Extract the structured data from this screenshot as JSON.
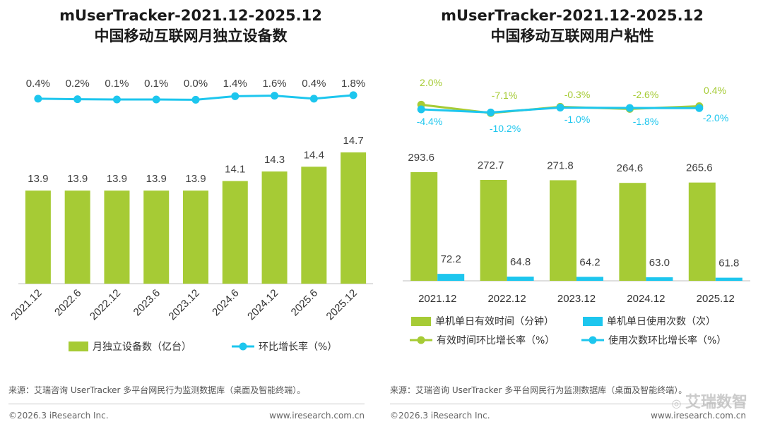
{
  "left": {
    "title_line1": "mUserTracker-2021.12-2025.12",
    "title_line2": "中国移动互联网月独立设备数",
    "source": "来源：艾瑞咨询 UserTracker 多平台网民行为监测数据库（桌面及智能终端）。",
    "copyright": "©2026.3 iResearch Inc.",
    "site": "www.iresearch.com.cn"
  },
  "right": {
    "title_line1": "mUserTracker-2021.12-2025.12",
    "title_line2": "中国移动互联网用户粘性",
    "source": "来源：艾瑞咨询 UserTracker 多平台网民行为监测数据库（桌面及智能终端）。",
    "copyright": "©2026.3 iResearch Inc.",
    "site": "www.iresearch.com.cn",
    "watermark": "艾瑞数智"
  },
  "colors": {
    "green": "#a6cb35",
    "blue": "#1dc6ee",
    "line_green": "#a6cb35",
    "line_blue": "#1dc6ee"
  },
  "chart_data": [
    {
      "type": "bar",
      "categories": [
        "2021.12",
        "2022.6",
        "2022.12",
        "2023.6",
        "2023.12",
        "2024.6",
        "2024.12",
        "2025.6",
        "2025.12"
      ],
      "series": [
        {
          "name": "月独立设备数（亿台）",
          "type": "bar",
          "values": [
            13.9,
            13.9,
            13.9,
            13.9,
            13.9,
            14.1,
            14.3,
            14.4,
            14.7
          ],
          "labels": [
            "13.9",
            "13.9",
            "13.9",
            "13.9",
            "13.9",
            "14.1",
            "14.3",
            "14.4",
            "14.7"
          ]
        },
        {
          "name": "环比增长率（%）",
          "type": "line",
          "values": [
            0.4,
            0.2,
            0.1,
            0.1,
            0.0,
            1.4,
            1.6,
            0.4,
            1.8
          ],
          "labels": [
            "0.4%",
            "0.2%",
            "0.1%",
            "0.1%",
            "0.0%",
            "1.4%",
            "1.6%",
            "0.4%",
            "1.8%"
          ]
        }
      ],
      "legend_position": "bottom",
      "grid": false
    },
    {
      "type": "bar",
      "categories": [
        "2021.12",
        "2022.12",
        "2023.12",
        "2024.12",
        "2025.12"
      ],
      "series": [
        {
          "name": "单机单日有效时间（分钟）",
          "type": "bar",
          "values": [
            293.6,
            272.7,
            271.8,
            264.6,
            265.6
          ],
          "labels": [
            "293.6",
            "272.7",
            "271.8",
            "264.6",
            "265.6"
          ]
        },
        {
          "name": "单机单日使用次数（次）",
          "type": "bar",
          "values": [
            72.2,
            64.8,
            64.2,
            63.0,
            61.8
          ],
          "labels": [
            "72.2",
            "64.8",
            "64.2",
            "63.0",
            "61.8"
          ]
        },
        {
          "name": "有效时间环比增长率（%）",
          "type": "line",
          "values": [
            2.0,
            -7.1,
            -0.3,
            -2.6,
            0.4
          ],
          "labels": [
            "2.0%",
            "-7.1%",
            "-0.3%",
            "-2.6%",
            "0.4%"
          ]
        },
        {
          "name": "使用次数环比增长率（%）",
          "type": "line",
          "values": [
            -4.4,
            -10.2,
            -1.0,
            -1.8,
            -2.0
          ],
          "labels": [
            "-4.4%",
            "-10.2%",
            "-1.0%",
            "-1.8%",
            "-2.0%"
          ]
        }
      ],
      "legend_position": "bottom",
      "grid": false
    }
  ]
}
